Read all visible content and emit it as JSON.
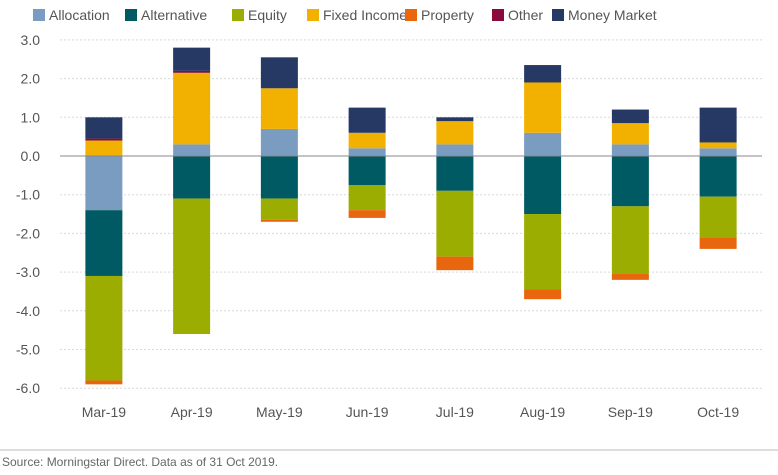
{
  "source": "Source: Morningstar Direct. Data as of 31 Oct 2019.",
  "chart_data": {
    "type": "bar",
    "stacked": true,
    "categories": [
      "Mar-19",
      "Apr-19",
      "May-19",
      "Jun-19",
      "Jul-19",
      "Aug-19",
      "Sep-19",
      "Oct-19"
    ],
    "ylim": [
      -6.0,
      3.0
    ],
    "yticks": [
      "3.0",
      "2.0",
      "1.0",
      "0.0",
      "-1.0",
      "-2.0",
      "-3.0",
      "-4.0",
      "-5.0",
      "-6.0"
    ],
    "ytick_values": [
      3,
      2,
      1,
      0,
      -1,
      -2,
      -3,
      -4,
      -5,
      -6
    ],
    "grid": true,
    "legend_position": "top",
    "series": [
      {
        "name": "Allocation",
        "color": "#7a9cc0",
        "values": [
          -1.4,
          0.3,
          0.7,
          0.2,
          0.3,
          0.6,
          0.3,
          0.2
        ]
      },
      {
        "name": "Alternative",
        "color": "#005a63",
        "values": [
          -1.7,
          -1.1,
          -1.1,
          -0.75,
          -0.9,
          -1.5,
          -1.3,
          -1.05
        ]
      },
      {
        "name": "Equity",
        "color": "#9aad00",
        "values": [
          -2.7,
          -3.5,
          -0.55,
          -0.65,
          -1.7,
          -1.95,
          -1.75,
          -1.05
        ]
      },
      {
        "name": "Fixed Income",
        "color": "#f2b100",
        "values": [
          0.4,
          1.85,
          1.05,
          0.4,
          0.6,
          1.3,
          0.55,
          0.15
        ]
      },
      {
        "name": "Property",
        "color": "#e8660d",
        "values": [
          -0.1,
          0.0,
          -0.05,
          -0.2,
          -0.35,
          -0.25,
          -0.15,
          -0.3
        ]
      },
      {
        "name": "Other",
        "color": "#8b0a3c",
        "values": [
          0.05,
          0.05,
          0.0,
          0.0,
          0.0,
          0.0,
          0.0,
          0.0
        ]
      },
      {
        "name": "Money Market",
        "color": "#263965",
        "values": [
          0.55,
          0.6,
          0.8,
          0.65,
          0.1,
          0.45,
          0.35,
          0.9
        ]
      }
    ]
  }
}
